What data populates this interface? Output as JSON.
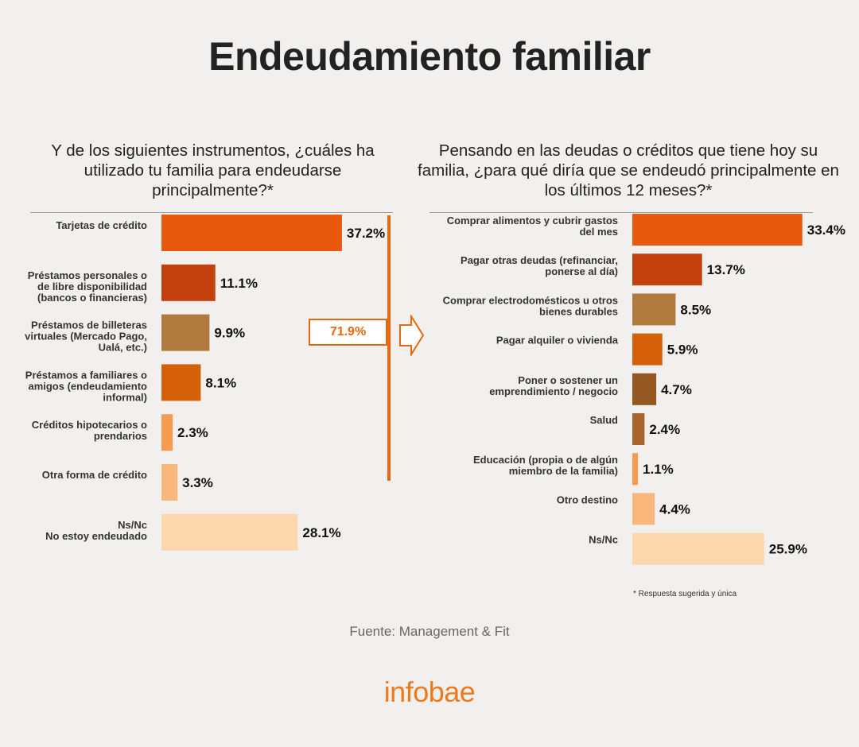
{
  "title": "Endeudamiento familiar",
  "left": {
    "question": "Y de los siguientes instrumentos, ¿cuáles ha utilizado tu familia para endeudarse principalmente?*",
    "callout": "71.9%"
  },
  "right": {
    "question": "Pensando en las deudas o créditos que tiene hoy su familia, ¿para qué diría que se endeudó principalmente en los últimos 12 meses?*"
  },
  "footnote": "* Respuesta sugerida y única",
  "source": "Fuente: Management & Fit",
  "logo": "infobae",
  "colors": {
    "background": "#f1f0ef",
    "accent": "#e8670f",
    "logo": "#ee7a1c"
  },
  "chart_data": [
    {
      "type": "bar",
      "orientation": "horizontal",
      "categories": [
        [
          "Tarjetas de crédito"
        ],
        [
          "Préstamos personales o",
          "de libre disponibilidad",
          "(bancos o financieras)"
        ],
        [
          "Préstamos de billeteras",
          "virtuales (Mercado Pago,",
          "Ualá, etc.)"
        ],
        [
          "Préstamos a familiares o",
          "amigos (endeudamiento",
          "informal)"
        ],
        [
          "Créditos hipotecarios o",
          "prendarios"
        ],
        [
          "Otra forma de crédito"
        ],
        [
          "Ns/Nc",
          "No estoy endeudado"
        ]
      ],
      "values": [
        37.2,
        11.1,
        9.9,
        8.1,
        2.3,
        3.3,
        28.1
      ],
      "value_labels": [
        "37.2%",
        "11.1%",
        "9.9%",
        "8.1%",
        "2.3%",
        "3.3%",
        "28.1%"
      ],
      "colors": [
        "#e8590f",
        "#c2410f",
        "#b0793d",
        "#d4600a",
        "#f69a50",
        "#f8b87b",
        "#fcd6ad"
      ]
    },
    {
      "type": "bar",
      "orientation": "horizontal",
      "categories": [
        [
          "Comprar alimentos y cubrir gastos",
          "del mes"
        ],
        [
          "Pagar otras deudas (refinanciar,",
          "ponerse al día)"
        ],
        [
          "Comprar electrodomésticos u otros",
          "bienes durables"
        ],
        [
          "Pagar alquiler o vivienda"
        ],
        [
          "Poner o sostener un",
          "emprendimiento / negocio"
        ],
        [
          "Salud"
        ],
        [
          "Educación (propia o de algún",
          "miembro de la familia)"
        ],
        [
          "Otro destino"
        ],
        [
          "Ns/Nc"
        ]
      ],
      "values": [
        33.4,
        13.7,
        8.5,
        5.9,
        4.7,
        2.4,
        1.1,
        4.4,
        25.9
      ],
      "value_labels": [
        "33.4%",
        "13.7%",
        "8.5%",
        "5.9%",
        "4.7%",
        "2.4%",
        "1.1%",
        "4.4%",
        "25.9%"
      ],
      "colors": [
        "#e8590f",
        "#c2410f",
        "#b0793d",
        "#d4600a",
        "#94571f",
        "#a8642c",
        "#f69a50",
        "#f8b87b",
        "#fcd6ad"
      ]
    }
  ]
}
